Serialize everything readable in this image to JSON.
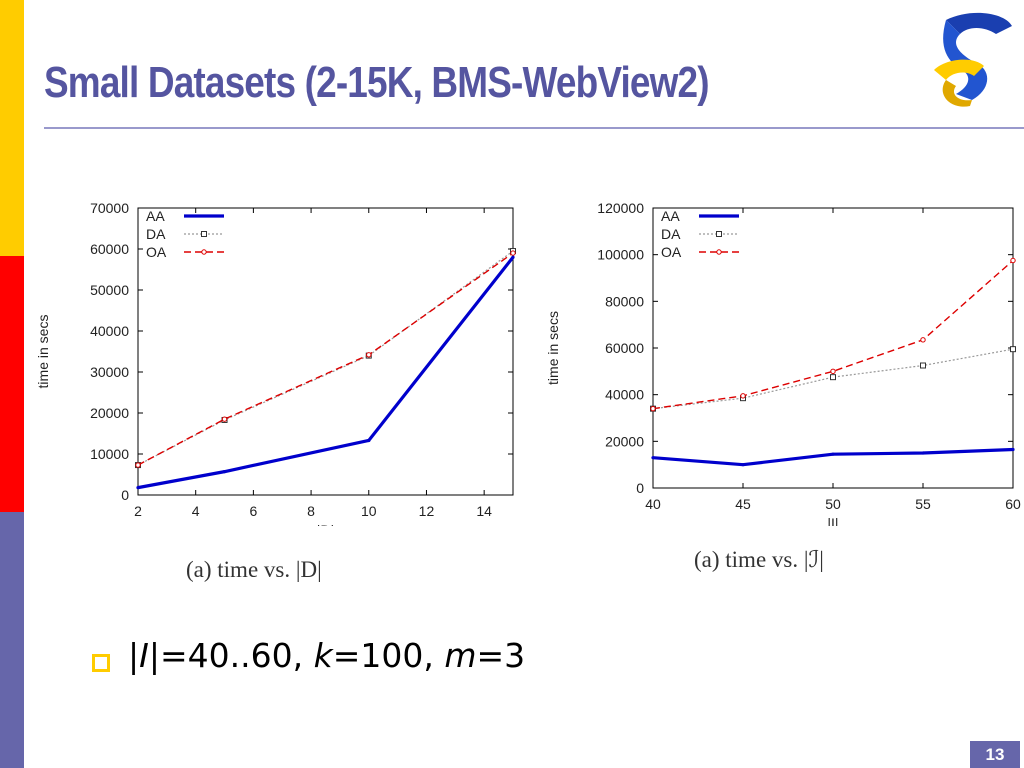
{
  "slide": {
    "title": "Small Datasets (2-15K, BMS-WebView2)",
    "bullet": {
      "prefix": "|",
      "i_var": "I",
      "mid1": "|=40..60, ",
      "k_var": "k",
      "mid2": "=100, ",
      "m_var": "m",
      "suffix": "=3"
    },
    "page_number": "13"
  },
  "captions": [
    "(a) time vs. |D|",
    "(a) time vs. |ℐ|"
  ],
  "colors": {
    "AA": "#0000cc",
    "DA": "#999999",
    "OA": "#dd0000",
    "accent": "#5555a0"
  },
  "chart_data": [
    {
      "type": "line",
      "title": "",
      "xlabel": "|D|",
      "ylabel": "time in secs",
      "xlim": [
        2,
        15
      ],
      "ylim": [
        0,
        70000
      ],
      "xticks": [
        2,
        4,
        6,
        8,
        10,
        12,
        14
      ],
      "yticks": [
        0,
        10000,
        20000,
        30000,
        40000,
        50000,
        60000,
        70000
      ],
      "legend_position": "top-left",
      "series": [
        {
          "name": "AA",
          "x": [
            2,
            5,
            10,
            15
          ],
          "y": [
            1800,
            5700,
            13300,
            58000
          ]
        },
        {
          "name": "DA",
          "x": [
            2,
            5,
            10,
            15
          ],
          "y": [
            7300,
            18300,
            34000,
            59500
          ]
        },
        {
          "name": "OA",
          "x": [
            2,
            5,
            10,
            15
          ],
          "y": [
            7300,
            18500,
            34200,
            59000
          ]
        }
      ]
    },
    {
      "type": "line",
      "title": "",
      "xlabel": "|I|",
      "ylabel": "time in secs",
      "xlim": [
        40,
        60
      ],
      "ylim": [
        0,
        120000
      ],
      "xticks": [
        40,
        45,
        50,
        55,
        60
      ],
      "yticks": [
        0,
        20000,
        40000,
        60000,
        80000,
        100000,
        120000
      ],
      "legend_position": "top-left",
      "series": [
        {
          "name": "AA",
          "x": [
            40,
            45,
            50,
            55,
            60
          ],
          "y": [
            13000,
            10000,
            14500,
            15000,
            16500
          ]
        },
        {
          "name": "DA",
          "x": [
            40,
            45,
            50,
            55,
            60
          ],
          "y": [
            34000,
            38500,
            47500,
            52500,
            59500
          ]
        },
        {
          "name": "OA",
          "x": [
            40,
            45,
            50,
            55,
            60
          ],
          "y": [
            34000,
            39500,
            50000,
            63500,
            97500
          ]
        }
      ]
    }
  ]
}
